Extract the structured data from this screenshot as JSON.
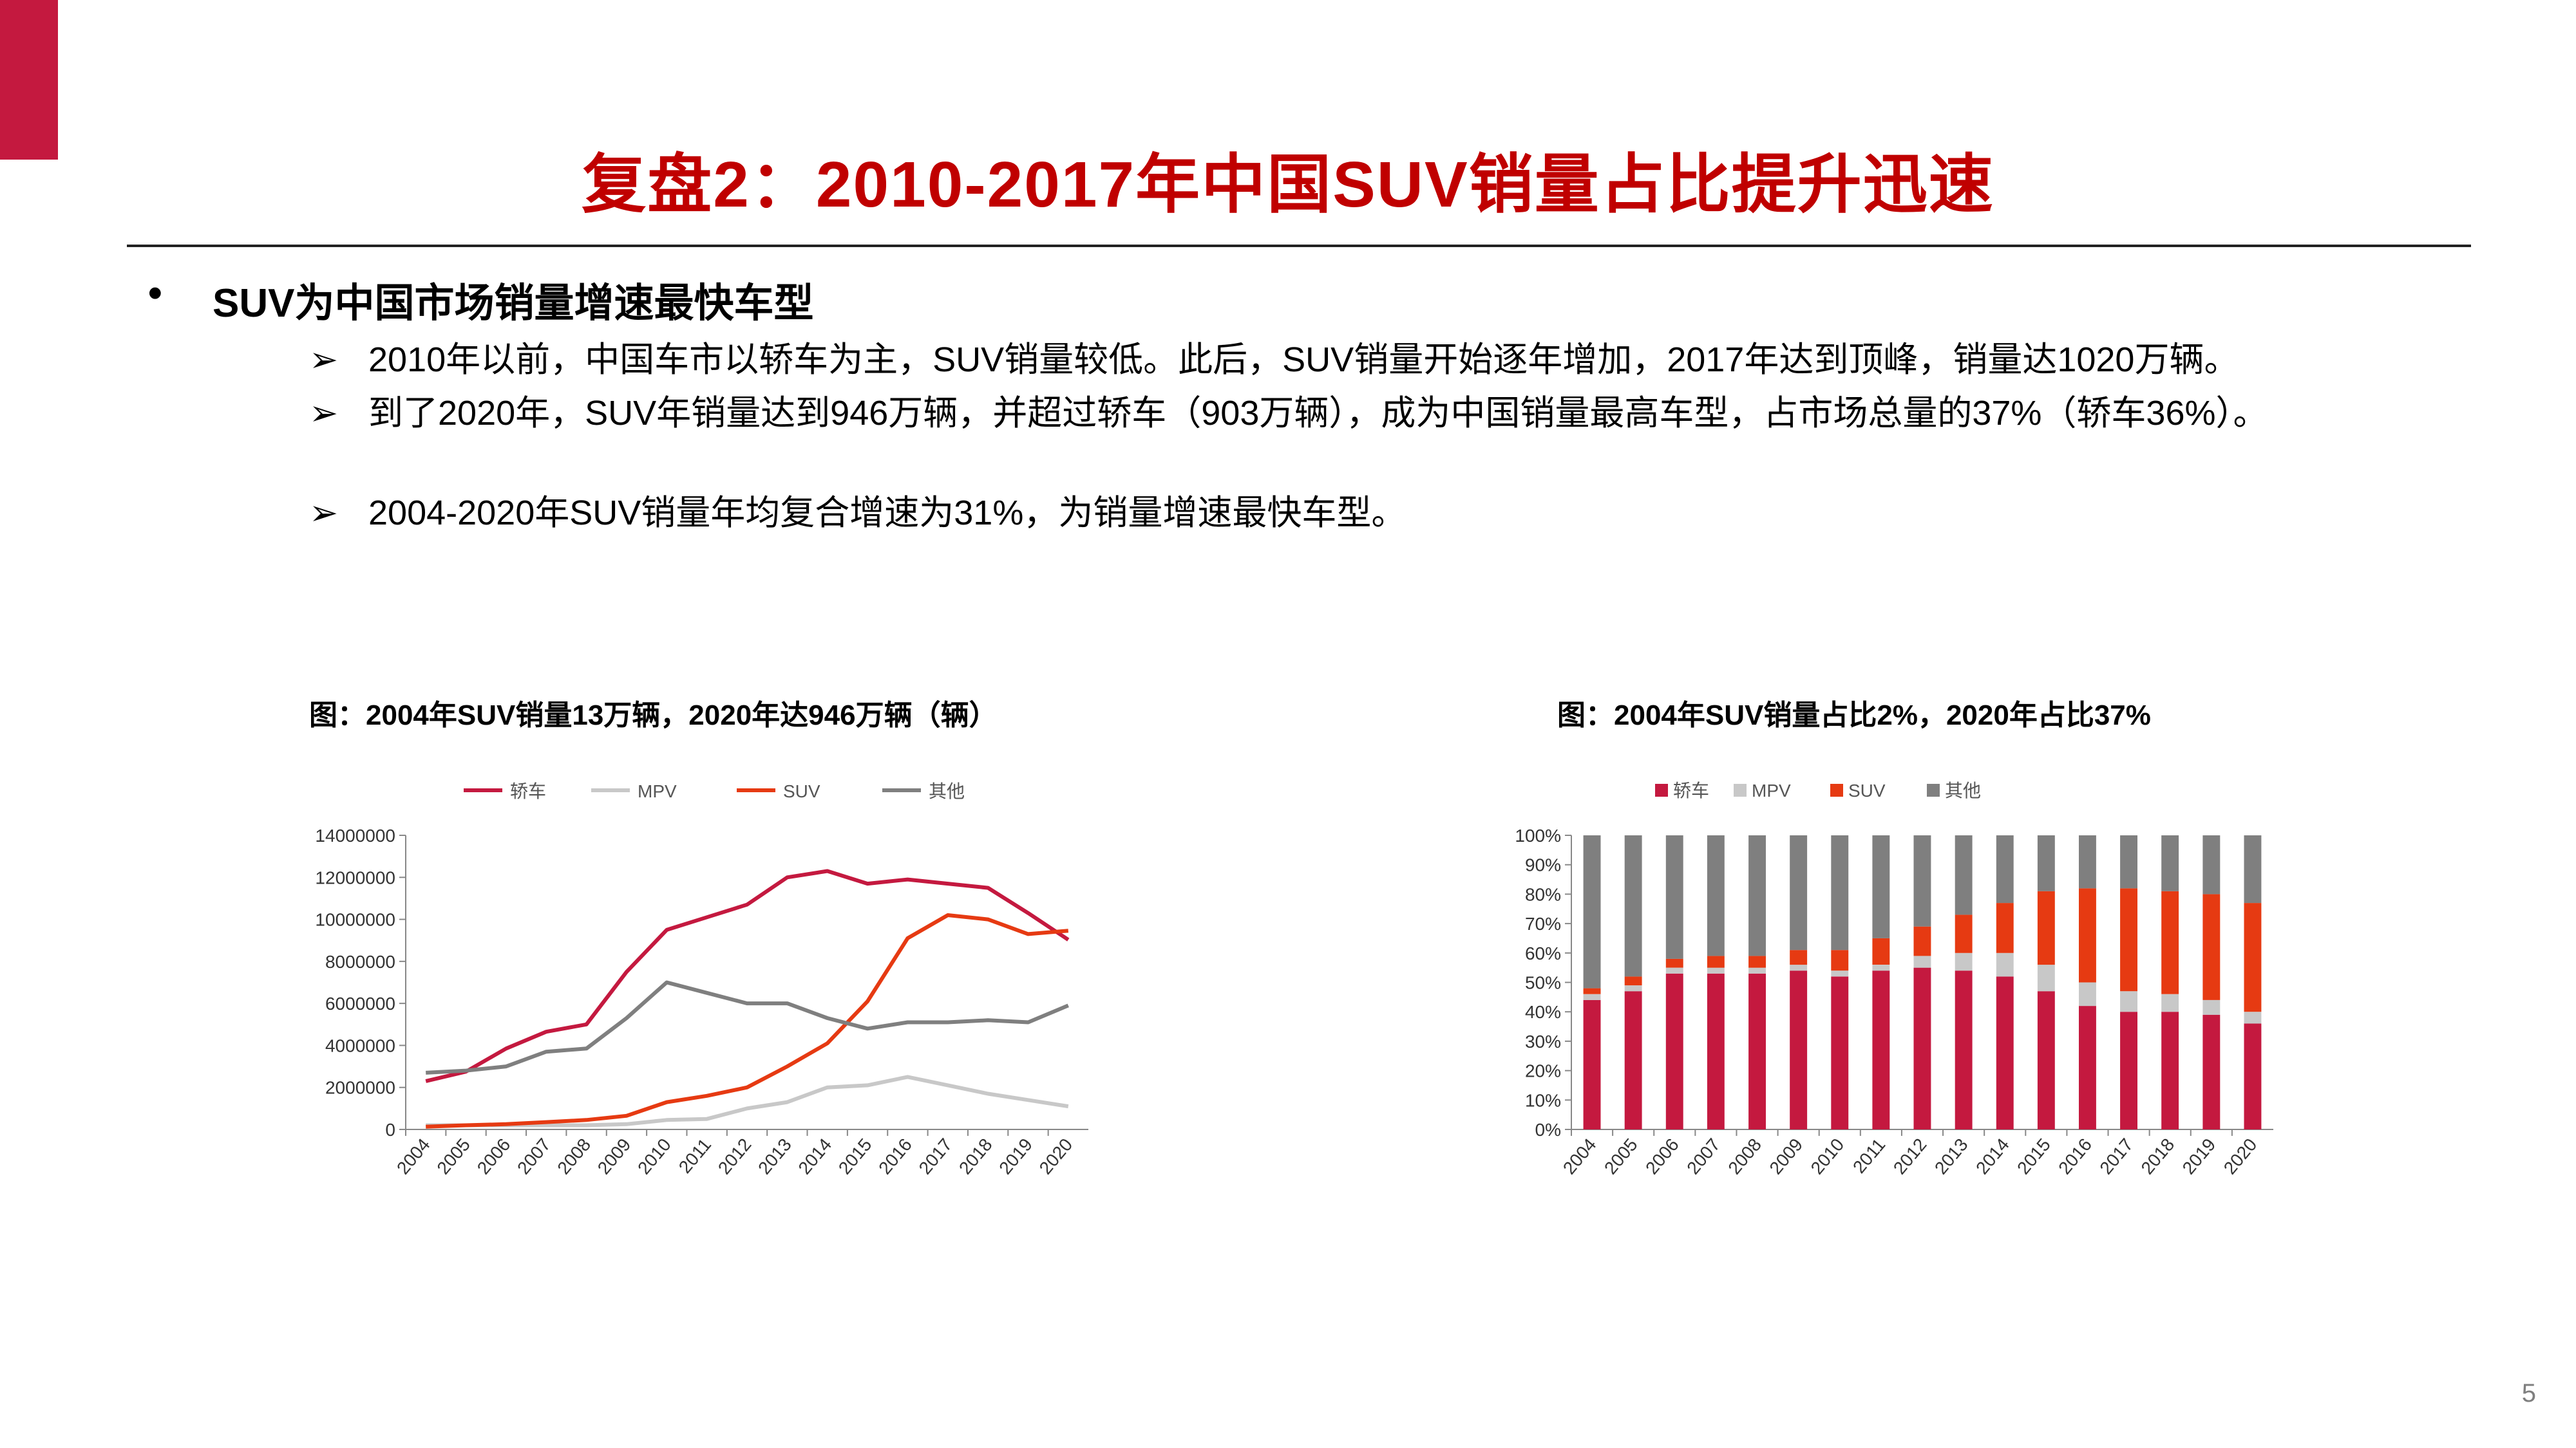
{
  "title": "复盘2：2010-2017年中国SUV销量占比提升迅速",
  "bullet": "SUV为中国市场销量增速最快车型",
  "points": [
    "2010年以前，中国车市以轿车为主，SUV销量较低。此后，SUV销量开始逐年增加，2017年达到顶峰，销量达1020万辆。",
    "到了2020年，SUV年销量达到946万辆，并超过轿车（903万辆），成为中国销量最高车型，占市场总量的37%（轿车36%）。",
    "2004-2020年SUV销量年均复合增速为31%，为销量增速最快车型。"
  ],
  "arrow_glyph": "➢",
  "bullet_glyph": "•",
  "page_number": "5",
  "chart_data": [
    {
      "type": "line",
      "title": "图：2004年SUV销量13万辆，2020年达946万辆（辆）",
      "categories": [
        "2004",
        "2005",
        "2006",
        "2007",
        "2008",
        "2009",
        "2010",
        "2011",
        "2012",
        "2013",
        "2014",
        "2015",
        "2016",
        "2017",
        "2018",
        "2019",
        "2020"
      ],
      "ylim": [
        0,
        14000000
      ],
      "yticks": [
        "0",
        "2000000",
        "4000000",
        "6000000",
        "8000000",
        "10000000",
        "12000000",
        "14000000"
      ],
      "legend_position": "top",
      "grid": false,
      "series": [
        {
          "name": "轿车",
          "color": "#c4193f",
          "values": [
            2300000,
            2750000,
            3850000,
            4650000,
            5000000,
            7500000,
            9500000,
            10100000,
            10700000,
            12000000,
            12300000,
            11700000,
            11900000,
            11700000,
            11500000,
            10300000,
            9030000
          ]
        },
        {
          "name": "MPV",
          "color": "#c8c8c8",
          "values": [
            200000,
            200000,
            200000,
            200000,
            200000,
            250000,
            450000,
            500000,
            1000000,
            1300000,
            2000000,
            2100000,
            2500000,
            2100000,
            1700000,
            1400000,
            1100000
          ]
        },
        {
          "name": "SUV",
          "color": "#e63a12",
          "values": [
            130000,
            200000,
            250000,
            350000,
            450000,
            650000,
            1300000,
            1600000,
            2000000,
            3000000,
            4100000,
            6100000,
            9100000,
            10200000,
            10000000,
            9300000,
            9460000
          ]
        },
        {
          "name": "其他",
          "color": "#7f7f7f",
          "values": [
            2700000,
            2800000,
            3000000,
            3700000,
            3850000,
            5300000,
            7000000,
            6500000,
            6000000,
            6000000,
            5300000,
            4800000,
            5100000,
            5100000,
            5200000,
            5100000,
            5900000
          ]
        }
      ]
    },
    {
      "type": "bar",
      "stacked": true,
      "title": "图：2004年SUV销量占比2%，2020年占比37%",
      "categories": [
        "2004",
        "2005",
        "2006",
        "2007",
        "2008",
        "2009",
        "2010",
        "2011",
        "2012",
        "2013",
        "2014",
        "2015",
        "2016",
        "2017",
        "2018",
        "2019",
        "2020"
      ],
      "ylim": [
        0,
        100
      ],
      "yticks": [
        "0%",
        "10%",
        "20%",
        "30%",
        "40%",
        "50%",
        "60%",
        "70%",
        "80%",
        "90%",
        "100%"
      ],
      "legend_position": "top",
      "grid": false,
      "series": [
        {
          "name": "轿车",
          "color": "#c4193f",
          "values": [
            44,
            47,
            53,
            53,
            53,
            54,
            52,
            54,
            55,
            54,
            52,
            47,
            42,
            40,
            40,
            39,
            36
          ]
        },
        {
          "name": "MPV",
          "color": "#c8c8c8",
          "values": [
            2,
            2,
            2,
            2,
            2,
            2,
            2,
            2,
            4,
            6,
            8,
            9,
            8,
            7,
            6,
            5,
            4
          ]
        },
        {
          "name": "SUV",
          "color": "#e63a12",
          "values": [
            2,
            3,
            3,
            4,
            4,
            5,
            7,
            9,
            10,
            13,
            17,
            25,
            32,
            35,
            35,
            36,
            37
          ]
        },
        {
          "name": "其他",
          "color": "#7f7f7f",
          "values": [
            52,
            48,
            42,
            41,
            41,
            39,
            39,
            35,
            31,
            27,
            23,
            19,
            18,
            18,
            19,
            20,
            23
          ]
        }
      ]
    }
  ]
}
